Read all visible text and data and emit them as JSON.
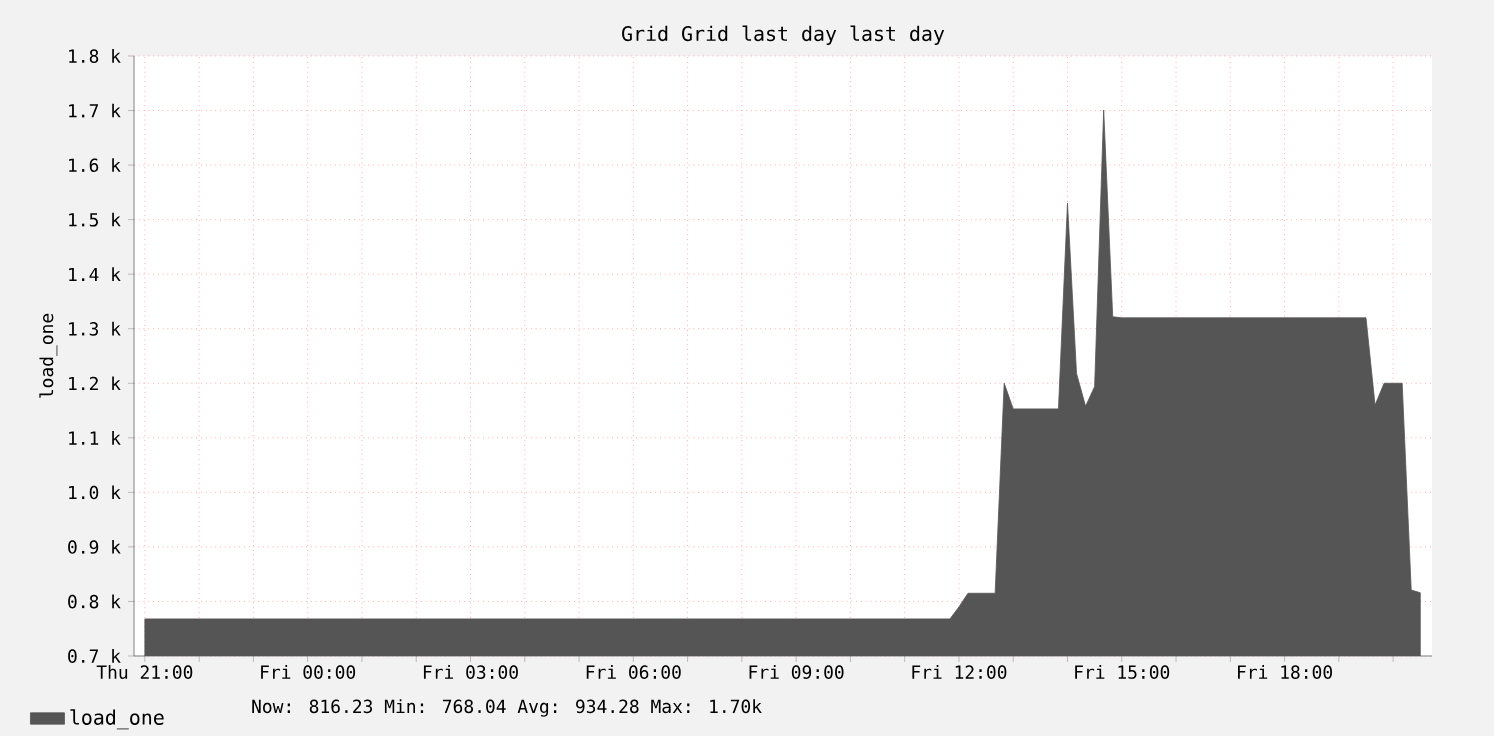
{
  "chart_data": {
    "type": "area",
    "title": "Grid Grid last day last day",
    "ylabel": "load_one",
    "categories": [
      "Thu 21:00",
      null,
      null,
      null,
      null,
      null,
      null,
      null,
      null,
      null,
      null,
      null,
      null,
      null,
      null,
      null,
      null,
      null,
      "Fri 00:00",
      null,
      null,
      null,
      null,
      null,
      null,
      null,
      null,
      null,
      null,
      null,
      null,
      null,
      null,
      null,
      null,
      null,
      "Fri 03:00",
      null,
      null,
      null,
      null,
      null,
      null,
      null,
      null,
      null,
      null,
      null,
      null,
      null,
      null,
      null,
      null,
      null,
      "Fri 06:00",
      null,
      null,
      null,
      null,
      null,
      null,
      null,
      null,
      null,
      null,
      null,
      null,
      null,
      null,
      null,
      null,
      null,
      "Fri 09:00",
      null,
      null,
      null,
      null,
      null,
      null,
      null,
      null,
      null,
      null,
      null,
      null,
      null,
      null,
      null,
      null,
      null,
      "Fri 12:00",
      null,
      null,
      null,
      null,
      null,
      null,
      null,
      null,
      null,
      null,
      null,
      null,
      null,
      null,
      null,
      null,
      null,
      "Fri 15:00",
      null,
      null,
      null,
      null,
      null,
      null,
      null,
      null,
      null,
      null,
      null,
      null,
      null,
      null,
      null,
      null,
      null,
      "Fri 18:00",
      null,
      null,
      null,
      null,
      null,
      null,
      null,
      null,
      null,
      null,
      null,
      null,
      null,
      null,
      null
    ],
    "ylim": [
      700,
      1800
    ],
    "yticks": [
      {
        "value": 700,
        "label": "0.7 k"
      },
      {
        "value": 800,
        "label": "0.8 k"
      },
      {
        "value": 900,
        "label": "0.9 k"
      },
      {
        "value": 1000,
        "label": "1.0 k"
      },
      {
        "value": 1100,
        "label": "1.1 k"
      },
      {
        "value": 1200,
        "label": "1.2 k"
      },
      {
        "value": 1300,
        "label": "1.3 k"
      },
      {
        "value": 1400,
        "label": "1.4 k"
      },
      {
        "value": 1500,
        "label": "1.5 k"
      },
      {
        "value": 1600,
        "label": "1.6 k"
      },
      {
        "value": 1700,
        "label": "1.7 k"
      },
      {
        "value": 1800,
        "label": "1.8 k"
      }
    ],
    "grid": true,
    "legend": "bottom",
    "series": [
      {
        "name": "load_one",
        "color": "#555555",
        "values": [
          768,
          768,
          768,
          768,
          768,
          768,
          768,
          768,
          768,
          768,
          768,
          768,
          768,
          768,
          768,
          768,
          768,
          768,
          768,
          768,
          768,
          768,
          768,
          768,
          768,
          768,
          768,
          768,
          768,
          768,
          768,
          768,
          768,
          768,
          768,
          768,
          768,
          768,
          768,
          768,
          768,
          768,
          768,
          768,
          768,
          768,
          768,
          768,
          768,
          768,
          768,
          768,
          768,
          768,
          768,
          768,
          768,
          768,
          768,
          768,
          768,
          768,
          768,
          768,
          768,
          768,
          768,
          768,
          768,
          768,
          768,
          768,
          768,
          768,
          768,
          768,
          768,
          768,
          768,
          768,
          768,
          768,
          768,
          768,
          768,
          768,
          768,
          768,
          768,
          768,
          790,
          815,
          815,
          815,
          815,
          1200,
          1153,
          1153,
          1153,
          1153,
          1153,
          1153,
          1530,
          1218,
          1158,
          1194,
          1701,
          1322,
          1320,
          1320,
          1320,
          1320,
          1320,
          1320,
          1320,
          1320,
          1320,
          1320,
          1320,
          1320,
          1320,
          1320,
          1320,
          1320,
          1320,
          1320,
          1320,
          1320,
          1320,
          1320,
          1320,
          1320,
          1320,
          1320,
          1320,
          1320,
          1160,
          1200,
          1200,
          1200,
          821,
          816
        ]
      }
    ],
    "annotations": [
      "Now: 816.23   Min: 768.04   Avg: 934.28   Max:   1.70k"
    ]
  }
}
